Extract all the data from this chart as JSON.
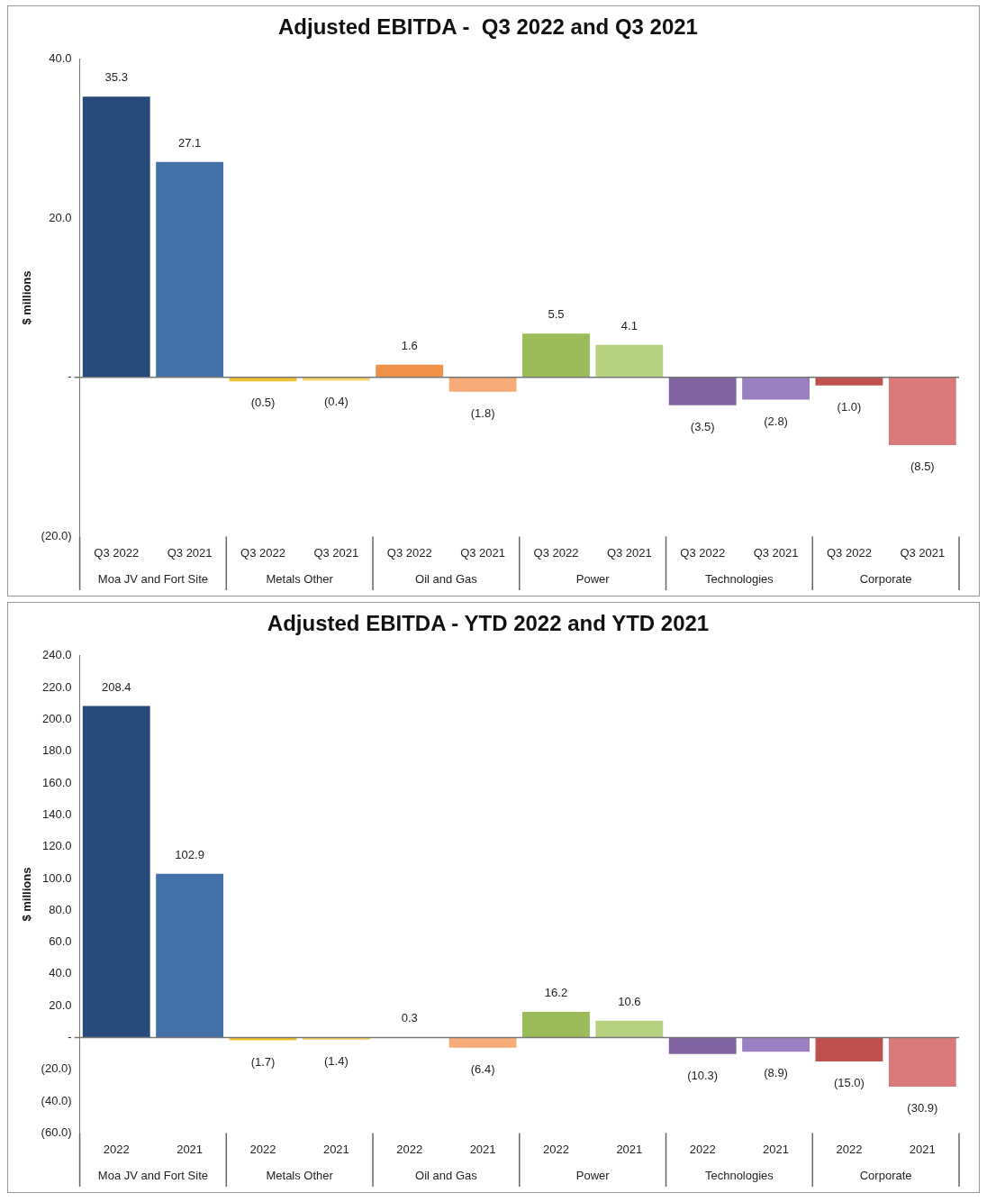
{
  "chart_data": [
    {
      "type": "bar",
      "title": "Adjusted EBITDA -  Q3 2022 and Q3 2021",
      "ylabel": "$ millions",
      "categories": [
        "Q3 2022",
        "Q3 2021",
        "Q3 2022",
        "Q3 2021",
        "Q3 2022",
        "Q3 2021",
        "Q3 2022",
        "Q3 2021",
        "Q3 2022",
        "Q3 2021",
        "Q3 2022",
        "Q3 2021"
      ],
      "annotations": [
        "Moa JV and Fort Site",
        "Metals Other",
        "Oil and Gas",
        "Power",
        "Technologies",
        "Corporate"
      ],
      "values": [
        35.3,
        27.1,
        -0.5,
        -0.4,
        1.6,
        -1.8,
        5.5,
        4.1,
        -3.5,
        -2.8,
        -1.0,
        -8.5
      ],
      "value_labels": [
        "35.3",
        "27.1",
        "(0.5)",
        "(0.4)",
        "1.6",
        "(1.8)",
        "5.5",
        "4.1",
        "(3.5)",
        "(2.8)",
        "(1.0)",
        "(8.5)"
      ],
      "colors": [
        "#284a7a",
        "#4470a8",
        "#f2c12e",
        "#f5d76e",
        "#f0914a",
        "#f7ab79",
        "#9bbb59",
        "#b6d17f",
        "#8064a2",
        "#9a80c0",
        "#c0504d",
        "#d9797a"
      ],
      "ylim": [
        -20,
        40
      ],
      "yticks": [
        {
          "value": -20,
          "label": "(20.0)"
        },
        {
          "value": 0,
          "label": "-"
        },
        {
          "value": 20,
          "label": "20.0"
        },
        {
          "value": 40,
          "label": "40.0"
        }
      ],
      "ref_lines": [
        {
          "axis": "y",
          "value": 0,
          "color": "#777777"
        }
      ],
      "grid": false,
      "legend": false
    },
    {
      "type": "bar",
      "title": "Adjusted EBITDA - YTD 2022 and YTD 2021",
      "ylabel": "$ millions",
      "categories": [
        "2022",
        "2021",
        "2022",
        "2021",
        "2022",
        "2021",
        "2022",
        "2021",
        "2022",
        "2021",
        "2022",
        "2021"
      ],
      "annotations": [
        "Moa JV and Fort Site",
        "Metals Other",
        "Oil and Gas",
        "Power",
        "Technologies",
        "Corporate"
      ],
      "values": [
        208.4,
        102.9,
        -1.7,
        -1.4,
        0.3,
        -6.4,
        16.2,
        10.6,
        -10.3,
        -8.9,
        -15.0,
        -30.9
      ],
      "value_labels": [
        "208.4",
        "102.9",
        "(1.7)",
        "(1.4)",
        "0.3",
        "(6.4)",
        "16.2",
        "10.6",
        "(10.3)",
        "(8.9)",
        "(15.0)",
        "(30.9)"
      ],
      "colors": [
        "#284a7a",
        "#4470a8",
        "#f2c12e",
        "#f5d76e",
        "#f0914a",
        "#f7ab79",
        "#9bbb59",
        "#b6d17f",
        "#8064a2",
        "#9a80c0",
        "#c0504d",
        "#d9797a"
      ],
      "ylim": [
        -60,
        240
      ],
      "yticks": [
        {
          "value": -60,
          "label": "(60.0)"
        },
        {
          "value": -40,
          "label": "(40.0)"
        },
        {
          "value": -20,
          "label": "(20.0)"
        },
        {
          "value": 0,
          "label": "-"
        },
        {
          "value": 20,
          "label": "20.0"
        },
        {
          "value": 40,
          "label": "40.0"
        },
        {
          "value": 60,
          "label": "60.0"
        },
        {
          "value": 80,
          "label": "80.0"
        },
        {
          "value": 100,
          "label": "100.0"
        },
        {
          "value": 120,
          "label": "120.0"
        },
        {
          "value": 140,
          "label": "140.0"
        },
        {
          "value": 160,
          "label": "160.0"
        },
        {
          "value": 180,
          "label": "180.0"
        },
        {
          "value": 200,
          "label": "200.0"
        },
        {
          "value": 220,
          "label": "220.0"
        },
        {
          "value": 240,
          "label": "240.0"
        }
      ],
      "ref_lines": [
        {
          "axis": "y",
          "value": 0,
          "color": "#777777"
        }
      ],
      "grid": false,
      "legend": false
    }
  ]
}
